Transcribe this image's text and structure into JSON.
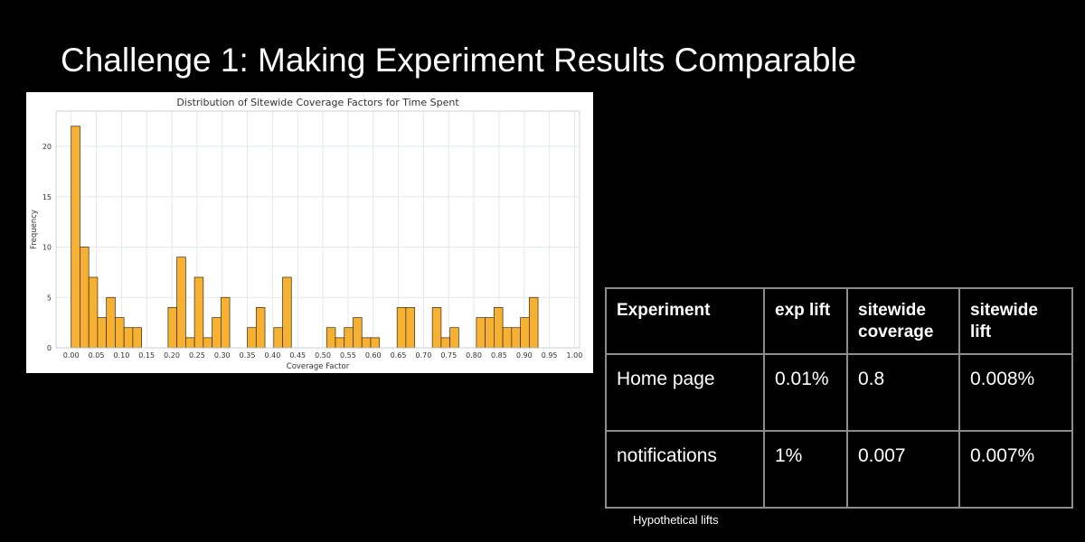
{
  "slide": {
    "title": "Challenge 1: Making Experiment Results Comparable",
    "table_caption": "Hypothetical lifts"
  },
  "colors": {
    "background": "#000000",
    "bar_fill": "#f6b032",
    "bar_edge": "#3a2a10",
    "table_border": "#8c8c8c"
  },
  "chart_data": {
    "type": "bar",
    "title": "Distribution of Sitewide Coverage Factors for Time Spent",
    "xlabel": "Coverage Factor",
    "ylabel": "Frequency",
    "xlim": [
      -0.03,
      1.01
    ],
    "ylim": [
      0,
      23.5
    ],
    "bin_width": 0.0175,
    "xticks": [
      "0.00",
      "0.05",
      "0.10",
      "0.15",
      "0.20",
      "0.25",
      "0.30",
      "0.35",
      "0.40",
      "0.45",
      "0.50",
      "0.55",
      "0.60",
      "0.65",
      "0.70",
      "0.75",
      "0.80",
      "0.85",
      "0.90",
      "0.95",
      "1.00"
    ],
    "yticks": [
      "0",
      "5",
      "10",
      "15",
      "20"
    ],
    "grid": true,
    "legend": "none",
    "bin_starts": [
      0.0,
      0.0175,
      0.035,
      0.0525,
      0.07,
      0.0875,
      0.105,
      0.1225,
      0.1925,
      0.21,
      0.2275,
      0.245,
      0.2625,
      0.28,
      0.2975,
      0.35,
      0.3675,
      0.4025,
      0.42,
      0.5075,
      0.525,
      0.5425,
      0.56,
      0.5775,
      0.595,
      0.6475,
      0.665,
      0.7175,
      0.735,
      0.7525,
      0.805,
      0.8225,
      0.84,
      0.8575,
      0.875,
      0.8925,
      0.91
    ],
    "values": [
      22,
      10,
      7,
      3,
      5,
      3,
      2,
      2,
      4,
      9,
      1,
      7,
      1,
      3,
      5,
      2,
      4,
      2,
      7,
      2,
      1,
      2,
      3,
      1,
      1,
      4,
      4,
      4,
      1,
      2,
      3,
      3,
      4,
      2,
      2,
      3,
      5
    ]
  },
  "table": {
    "headers": [
      "Experiment",
      "exp lift",
      "sitewide\ncoverage",
      "sitewide\nlift"
    ],
    "rows": [
      [
        "Home page",
        "0.01%",
        "0.8",
        "0.008%"
      ],
      [
        "notifications",
        "1%",
        "0.007",
        "0.007%"
      ]
    ]
  }
}
